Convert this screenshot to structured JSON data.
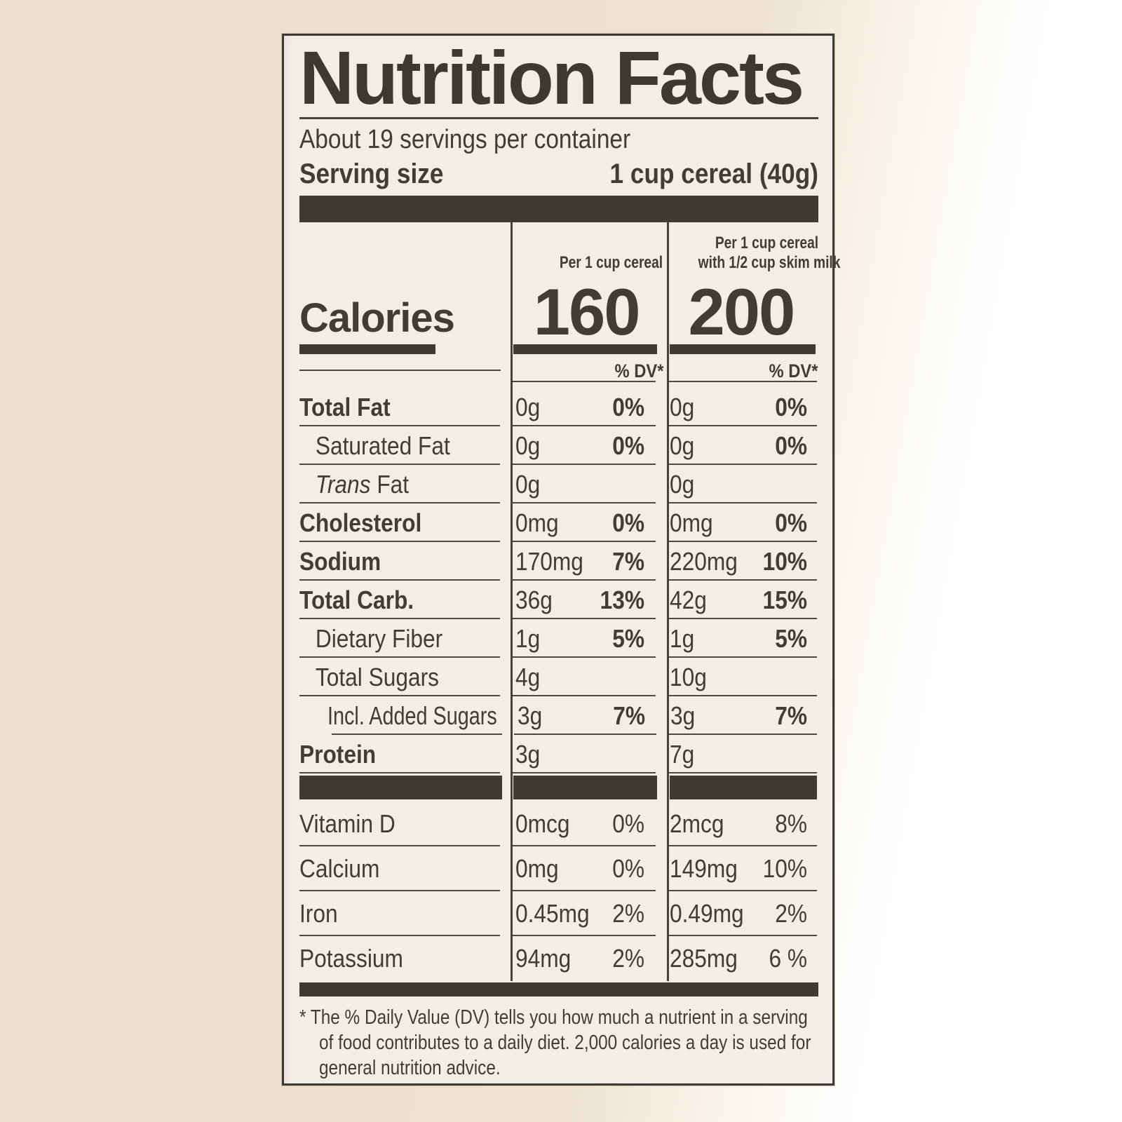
{
  "label": {
    "title": "Nutrition Facts",
    "servings_per_container": "About 19 servings per container",
    "serving_size": {
      "label": "Serving size",
      "value": "1 cup cereal (40g)"
    },
    "columns": [
      {
        "header_line1": "Per 1 cup cereal",
        "header_line2": "",
        "dv_header": "% DV*"
      },
      {
        "header_line1": "Per 1 cup cereal",
        "header_line2": "with 1/2 cup skim milk",
        "dv_header": "% DV*"
      }
    ],
    "calories": {
      "label": "Calories",
      "per_cereal": "160",
      "per_cereal_with_milk": "200"
    },
    "nutrients": [
      {
        "name": "Total Fat",
        "bold": true,
        "indent": 0,
        "cols": [
          {
            "amt": "0g",
            "dv": "0%"
          },
          {
            "amt": "0g",
            "dv": "0%"
          }
        ]
      },
      {
        "name": "Saturated Fat",
        "bold": false,
        "indent": 1,
        "cols": [
          {
            "amt": "0g",
            "dv": "0%"
          },
          {
            "amt": "0g",
            "dv": "0%"
          }
        ]
      },
      {
        "name": "Trans Fat",
        "name_italic_part": "Trans",
        "name_rest": " Fat",
        "bold": false,
        "indent": 1,
        "cols": [
          {
            "amt": "0g",
            "dv": ""
          },
          {
            "amt": "0g",
            "dv": ""
          }
        ]
      },
      {
        "name": "Cholesterol",
        "bold": true,
        "indent": 0,
        "cols": [
          {
            "amt": "0mg",
            "dv": "0%"
          },
          {
            "amt": "0mg",
            "dv": "0%"
          }
        ]
      },
      {
        "name": "Sodium",
        "bold": true,
        "indent": 0,
        "cols": [
          {
            "amt": "170mg",
            "dv": "7%"
          },
          {
            "amt": "220mg",
            "dv": "10%"
          }
        ]
      },
      {
        "name": "Total Carb.",
        "bold": true,
        "indent": 0,
        "cols": [
          {
            "amt": "36g",
            "dv": "13%"
          },
          {
            "amt": "42g",
            "dv": "15%"
          }
        ]
      },
      {
        "name": "Dietary Fiber",
        "bold": false,
        "indent": 1,
        "cols": [
          {
            "amt": "1g",
            "dv": "5%"
          },
          {
            "amt": "1g",
            "dv": "5%"
          }
        ]
      },
      {
        "name": "Total Sugars",
        "bold": false,
        "indent": 1,
        "cols": [
          {
            "amt": "4g",
            "dv": ""
          },
          {
            "amt": "10g",
            "dv": ""
          }
        ]
      },
      {
        "name": "Incl. Added Sugars",
        "bold": false,
        "indent": 2,
        "indent_line": true,
        "cols": [
          {
            "amt": "3g",
            "dv": "7%"
          },
          {
            "amt": "3g",
            "dv": "7%"
          }
        ]
      },
      {
        "name": "Protein",
        "bold": true,
        "indent": 0,
        "cols": [
          {
            "amt": "3g",
            "dv": ""
          },
          {
            "amt": "7g",
            "dv": ""
          }
        ]
      }
    ],
    "vitamins": [
      {
        "name": "Vitamin D",
        "cols": [
          {
            "amt": "0mcg",
            "dv": "0%"
          },
          {
            "amt": "2mcg",
            "dv": "8%"
          }
        ]
      },
      {
        "name": "Calcium",
        "cols": [
          {
            "amt": "0mg",
            "dv": "0%"
          },
          {
            "amt": "149mg",
            "dv": "10%"
          }
        ]
      },
      {
        "name": "Iron",
        "cols": [
          {
            "amt": "0.45mg",
            "dv": "2%"
          },
          {
            "amt": "0.49mg",
            "dv": "2%"
          }
        ]
      },
      {
        "name": "Potassium",
        "cols": [
          {
            "amt": "94mg",
            "dv": "2%"
          },
          {
            "amt": "285mg",
            "dv": "6 %"
          }
        ]
      }
    ],
    "footnote_lines": [
      "* The % Daily Value (DV) tells you how much a nutrient in a serving",
      "of food contributes to a daily diet. 2,000 calories a day is used for",
      "general nutrition advice."
    ],
    "colors": {
      "ink": "#413c35",
      "panel": "#f1eee8",
      "bar": "#3f3a32",
      "hairline": "#4e483e",
      "background_left": "#ebdfce",
      "background_right": "#ffffff"
    }
  }
}
